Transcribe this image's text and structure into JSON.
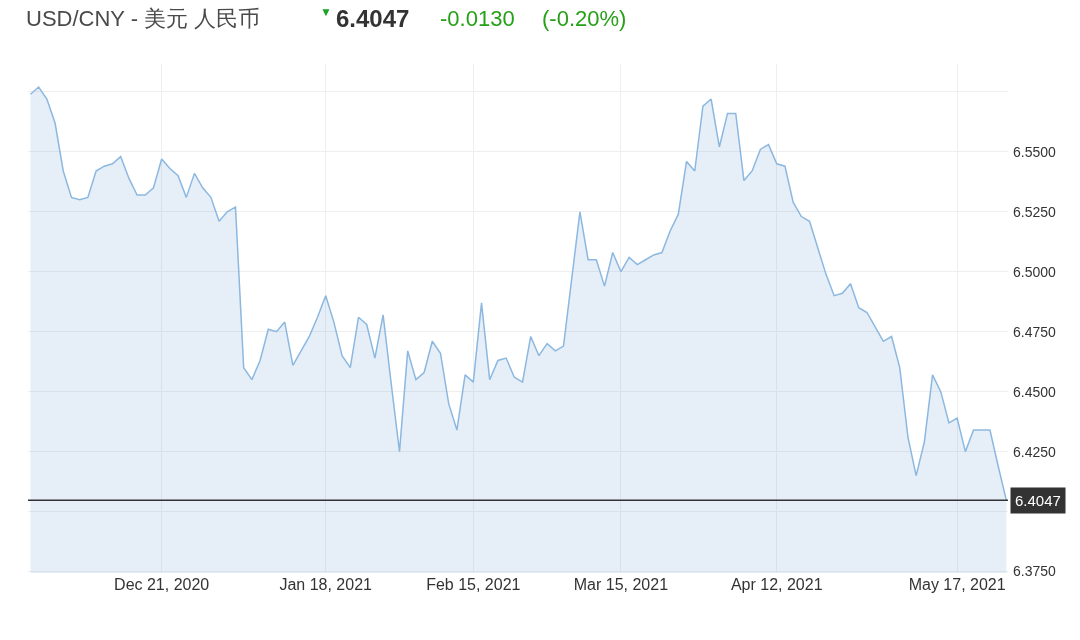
{
  "chart_data": {
    "type": "area",
    "title": "USD/CNY - 美元 人民币",
    "annotations": [
      "▼",
      "6.4047",
      "-0.0130",
      "(-0.20%)"
    ],
    "categories": [
      null,
      null,
      null,
      null,
      null,
      null,
      null,
      null,
      null,
      null,
      null,
      null,
      null,
      null,
      null,
      null,
      "Dec 21, 2020",
      null,
      null,
      null,
      null,
      null,
      null,
      null,
      null,
      null,
      null,
      null,
      null,
      null,
      null,
      null,
      null,
      null,
      null,
      null,
      "Jan 18, 2021",
      null,
      null,
      null,
      null,
      null,
      null,
      null,
      null,
      null,
      null,
      null,
      null,
      null,
      null,
      null,
      null,
      null,
      "Feb 15, 2021",
      null,
      null,
      null,
      null,
      null,
      null,
      null,
      null,
      null,
      null,
      null,
      null,
      null,
      null,
      null,
      null,
      null,
      "Mar 15, 2021",
      null,
      null,
      null,
      null,
      null,
      null,
      null,
      null,
      null,
      null,
      null,
      null,
      null,
      null,
      null,
      null,
      null,
      null,
      "Apr 12, 2021",
      null,
      null,
      null,
      null,
      null,
      null,
      null,
      null,
      null,
      null,
      null,
      null,
      null,
      null,
      null,
      null,
      null,
      null,
      null,
      null,
      null,
      "May 17, 2021",
      null,
      null,
      null,
      null,
      null,
      null
    ],
    "series": [
      {
        "color": "#8cb8e0",
        "values": [
          6.574,
          6.577,
          6.572,
          6.562,
          6.542,
          6.531,
          6.53,
          6.531,
          6.542,
          6.544,
          6.545,
          6.548,
          6.539,
          6.532,
          6.532,
          6.535,
          6.547,
          6.543,
          6.54,
          6.531,
          6.541,
          6.535,
          6.531,
          6.521,
          6.525,
          6.527,
          6.46,
          6.455,
          6.463,
          6.476,
          6.475,
          6.479,
          6.461,
          6.467,
          6.473,
          6.481,
          6.49,
          6.479,
          6.465,
          6.46,
          6.481,
          6.478,
          6.464,
          6.482,
          6.453,
          6.425,
          6.467,
          6.455,
          6.458,
          6.471,
          6.466,
          6.445,
          6.434,
          6.457,
          6.454,
          6.487,
          6.455,
          6.463,
          6.464,
          6.456,
          6.454,
          6.473,
          6.465,
          6.47,
          6.467,
          6.469,
          6.497,
          6.525,
          6.505,
          6.505,
          6.494,
          6.508,
          6.5,
          6.506,
          6.503,
          6.505,
          6.507,
          6.508,
          6.517,
          6.524,
          6.546,
          6.542,
          6.569,
          6.572,
          6.552,
          6.566,
          6.566,
          6.538,
          6.542,
          6.551,
          6.553,
          6.545,
          6.544,
          6.529,
          6.523,
          6.521,
          6.51,
          6.499,
          6.49,
          6.491,
          6.495,
          6.485,
          6.483,
          6.477,
          6.471,
          6.473,
          6.46,
          6.431,
          6.415,
          6.429,
          6.457,
          6.45,
          6.437,
          6.439,
          6.425,
          6.434,
          6.434,
          6.434,
          6.419,
          6.4047
        ]
      }
    ],
    "ylim": [
      6.3744,
      6.5866
    ],
    "yticks": [
      {
        "value": 6.375,
        "label": "6.3750"
      },
      {
        "value": 6.4,
        "label": null
      },
      {
        "value": 6.425,
        "label": "6.4250"
      },
      {
        "value": 6.45,
        "label": "6.4500"
      },
      {
        "value": 6.475,
        "label": "6.4750"
      },
      {
        "value": 6.5,
        "label": "6.5000"
      },
      {
        "value": 6.525,
        "label": "6.5250"
      },
      {
        "value": 6.55,
        "label": "6.5500"
      },
      {
        "value": 6.575,
        "label": null
      }
    ],
    "grid": true,
    "ref_lines": [
      {
        "axis": "y",
        "value": 6.4047,
        "label": "6.4047",
        "color": "#333333"
      }
    ]
  }
}
